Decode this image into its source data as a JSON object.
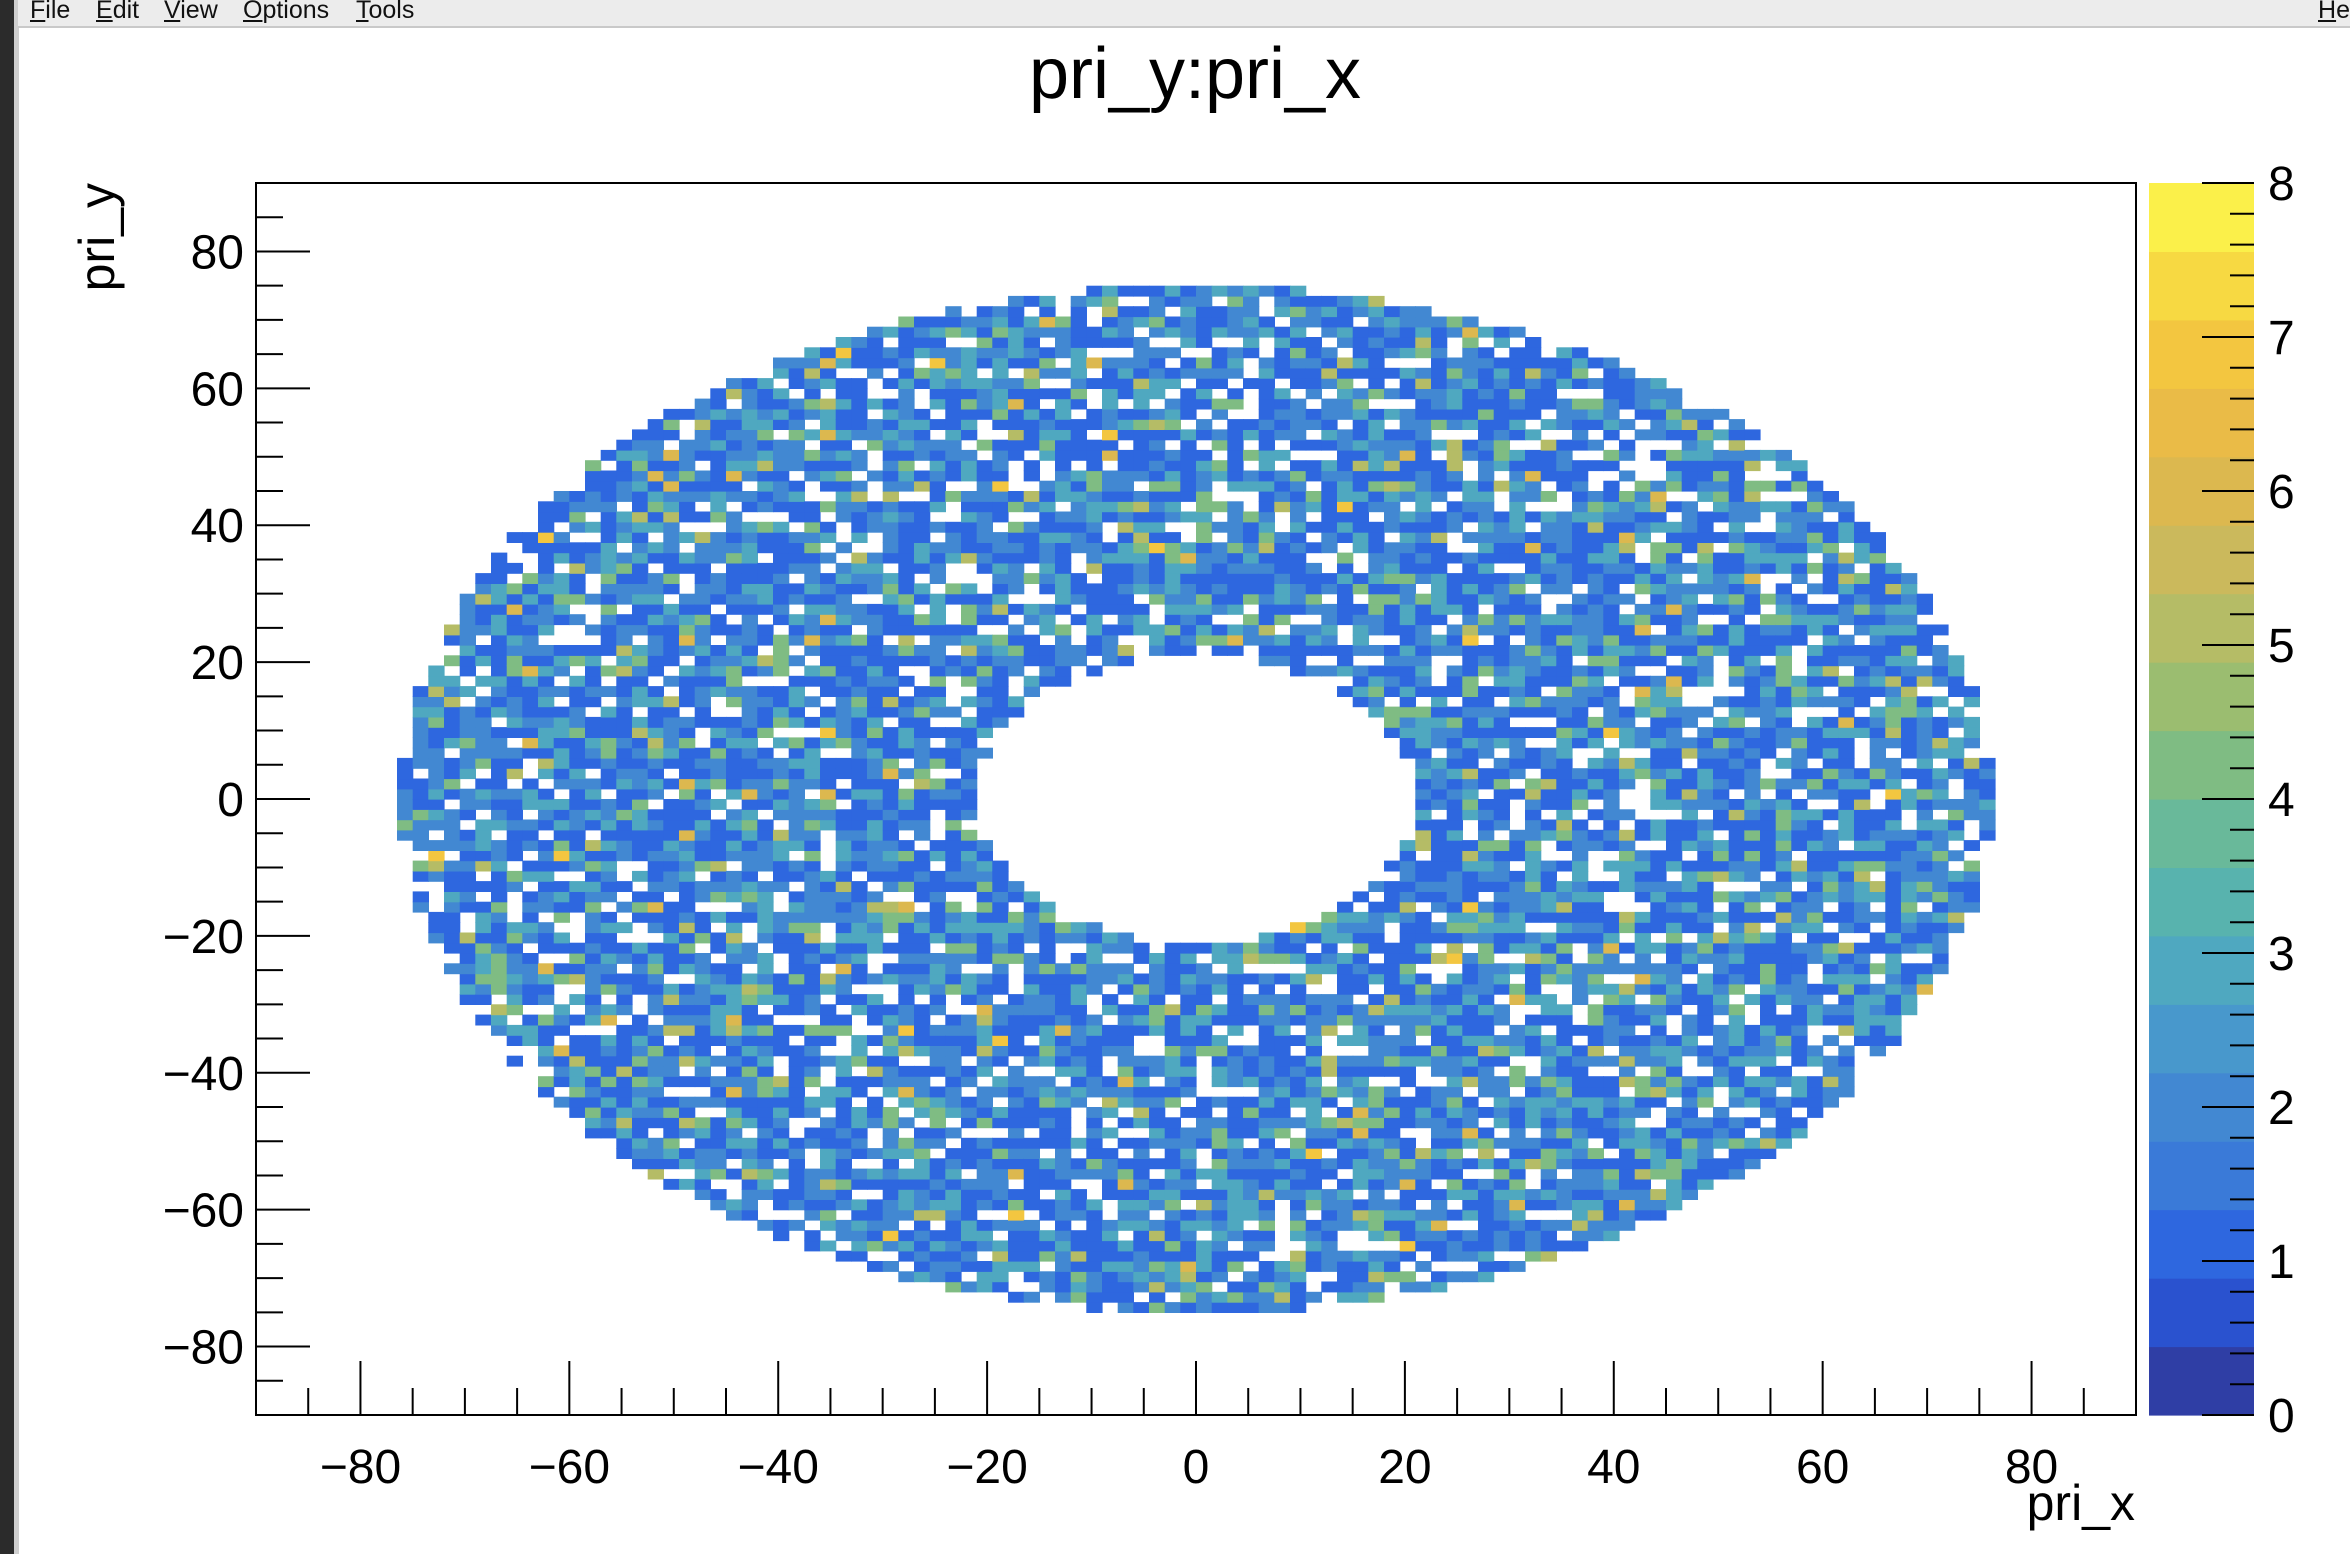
{
  "menubar": {
    "items": [
      "File",
      "Edit",
      "View",
      "Options",
      "Tools"
    ],
    "help": "Help"
  },
  "chart_data": {
    "type": "heatmap",
    "title": "pri_y:pri_x",
    "xlabel": "pri_x",
    "ylabel": "pri_y",
    "xlim": [
      -90,
      90
    ],
    "ylim": [
      -90,
      90
    ],
    "x_ticks": [
      "−80",
      "−60",
      "−40",
      "−20",
      "0",
      "20",
      "40",
      "60",
      "80"
    ],
    "y_ticks": [
      "80",
      "60",
      "40",
      "20",
      "0",
      "−20",
      "−40",
      "−60",
      "−80"
    ],
    "colorbar": {
      "range": [
        0,
        8
      ],
      "ticks": [
        "0",
        "1",
        "2",
        "3",
        "4",
        "5",
        "6",
        "7",
        "8"
      ],
      "palette": [
        "#2f3ea5",
        "#2a52cf",
        "#2e67df",
        "#3a7ad8",
        "#4288d2",
        "#4898cc",
        "#4fa8c0",
        "#58b3ae",
        "#69b99a",
        "#7fbc83",
        "#9bbd70",
        "#b5bc66",
        "#cbb95c",
        "#dcb84f",
        "#eabb47",
        "#f3c640",
        "#f7d942",
        "#fbf04a"
      ]
    },
    "distribution": {
      "shape": "elliptical ring",
      "outer_semi_axis_x": 76,
      "outer_semi_axis_y": 75,
      "inner_semi_axis_x": 21,
      "inner_semi_axis_y": 21,
      "bin_width": 1.5,
      "typical_counts": [
        1,
        2,
        3,
        4
      ],
      "max_count": 8
    },
    "grid": false,
    "legend": "colorbar-right"
  }
}
